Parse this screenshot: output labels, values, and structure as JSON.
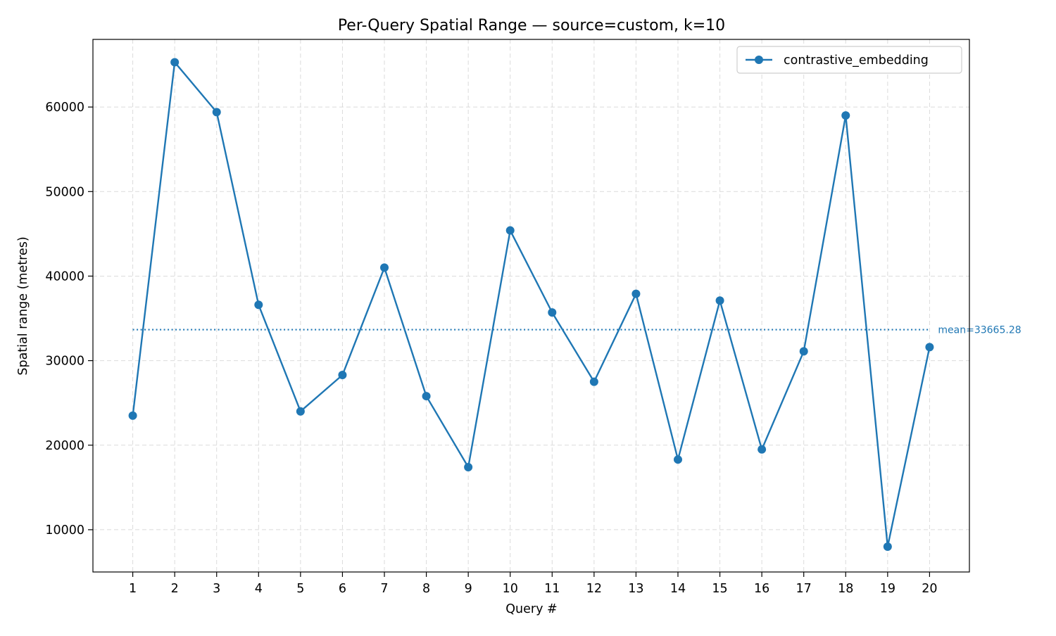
{
  "chart_data": {
    "type": "line",
    "title": "Per-Query Spatial Range — source=custom, k=10",
    "xlabel": "Query #",
    "ylabel": "Spatial range (metres)",
    "x": [
      1,
      2,
      3,
      4,
      5,
      6,
      7,
      8,
      9,
      10,
      11,
      12,
      13,
      14,
      15,
      16,
      17,
      18,
      19,
      20
    ],
    "xticks": [
      "1",
      "2",
      "3",
      "4",
      "5",
      "6",
      "7",
      "8",
      "9",
      "10",
      "11",
      "12",
      "13",
      "14",
      "15",
      "16",
      "17",
      "18",
      "19",
      "20"
    ],
    "yticks": [
      10000,
      20000,
      30000,
      40000,
      50000,
      60000
    ],
    "ytick_labels": [
      "10000",
      "20000",
      "30000",
      "40000",
      "50000",
      "60000"
    ],
    "xlim": [
      0.05,
      20.95
    ],
    "ylim": [
      5000,
      68000
    ],
    "grid": true,
    "legend_position": "top-right",
    "series": [
      {
        "name": "contrastive_embedding",
        "color": "#1f77b4",
        "values": [
          23500,
          65300,
          59400,
          36600,
          24000,
          28300,
          41000,
          25800,
          17400,
          45400,
          35700,
          27500,
          37900,
          18300,
          37100,
          19500,
          31100,
          59000,
          8000,
          31600
        ]
      }
    ],
    "mean_line": {
      "value": 33665.28,
      "label": "mean=33665.28",
      "color": "#1f77b4"
    }
  }
}
